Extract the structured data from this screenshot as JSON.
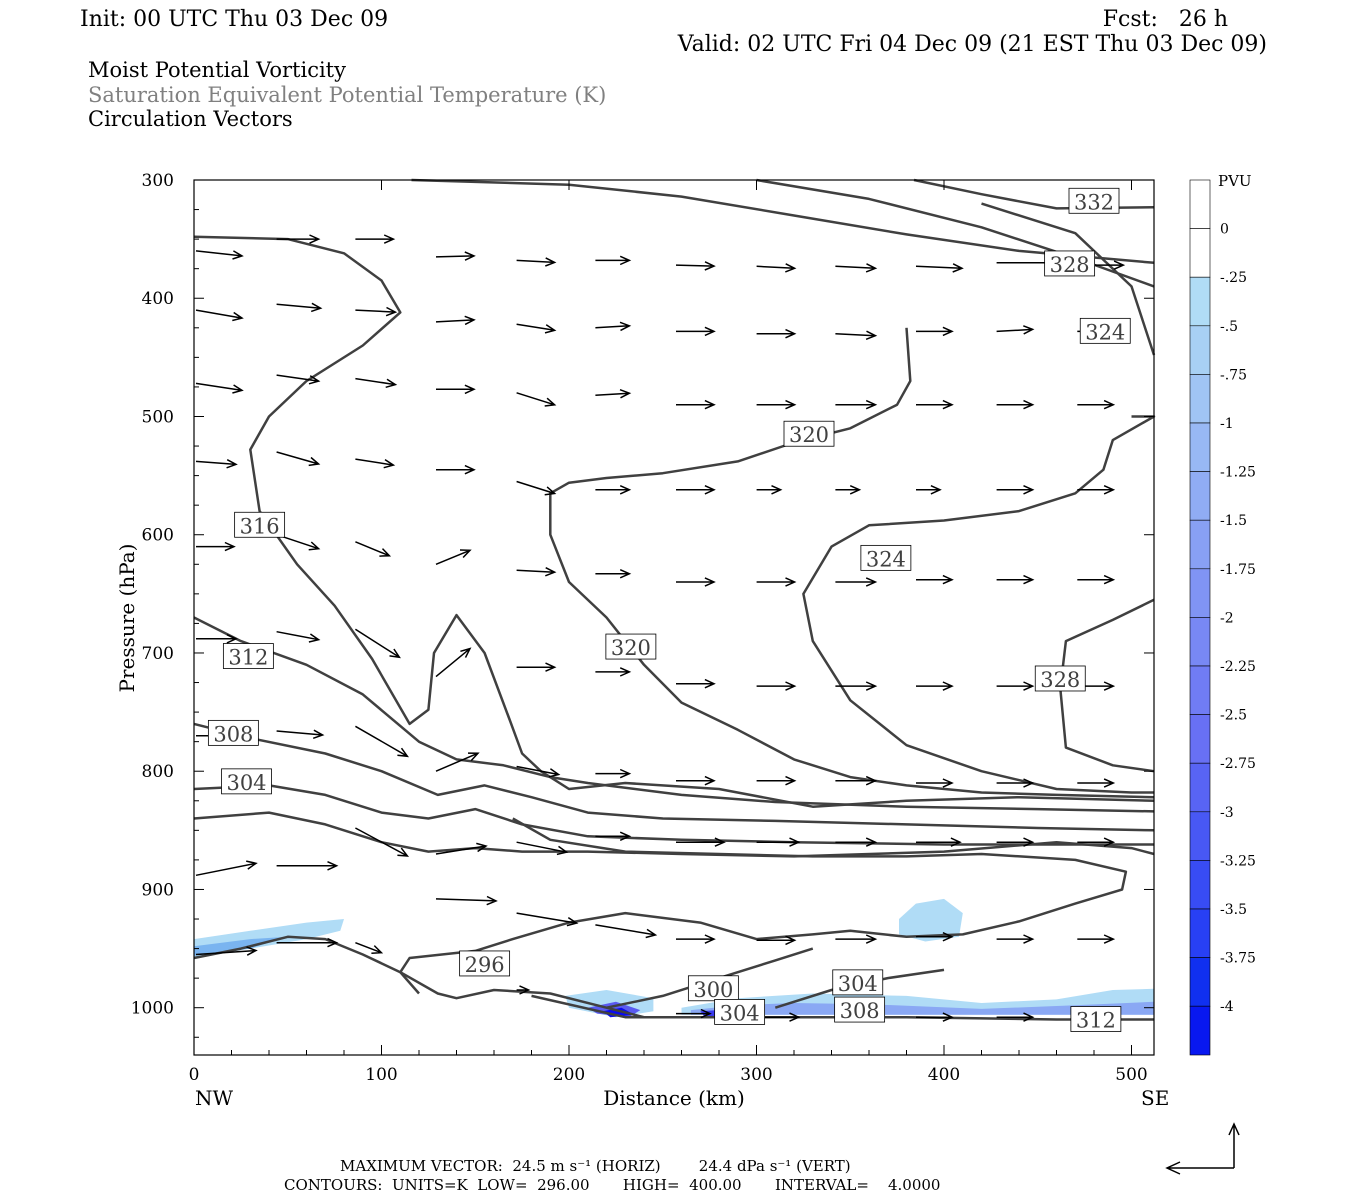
{
  "header": {
    "init": "Init: 00 UTC Thu 03 Dec 09",
    "fcst": "Fcst:   26 h",
    "valid": "Valid: 02 UTC Fri 04 Dec 09 (21 EST Thu 03 Dec 09)",
    "field1": "Moist Potential Vorticity",
    "field2": "Saturation Equivalent Potential Temperature (K)",
    "field3": "Circulation Vectors"
  },
  "footer": {
    "max_vector_line": "MAXIMUM VECTOR:  24.5 m s⁻¹ (HORIZ)        24.4 dPa s⁻¹ (VERT)",
    "contours_line": "CONTOURS:  UNITS=K  LOW=  296.00       HIGH=  400.00       INTERVAL=    4.0000"
  },
  "colors": {
    "contour": "#404040",
    "frame": "#000000",
    "shade_light": "#b0dcf6",
    "shade_dark": "#0a0af0"
  },
  "chart_data": {
    "type": "contour",
    "xlabel": "Distance (km)",
    "ylabel": "Pressure (hPa)",
    "xlim": [
      0,
      512
    ],
    "ylim": [
      300,
      1040
    ],
    "x_reversed": false,
    "y_reversed": true,
    "x_ticks": [
      0,
      100,
      200,
      300,
      400,
      500
    ],
    "y_ticks": [
      300,
      400,
      500,
      600,
      700,
      800,
      900,
      1000
    ],
    "x_end_labels": [
      "NW",
      "SE"
    ],
    "colorbar": {
      "title": "PVU",
      "levels": [
        0,
        -0.25,
        -0.5,
        -0.75,
        -1,
        -1.25,
        -1.5,
        -1.75,
        -2,
        -2.25,
        -2.5,
        -2.75,
        -3,
        -3.25,
        -3.5,
        -3.75,
        -4
      ],
      "labels": [
        "0",
        "-.25",
        "-.5",
        "-.75",
        "-1",
        "-1.25",
        "-1.5",
        "-1.75",
        "-2",
        "-2.25",
        "-2.5",
        "-2.75",
        "-3",
        "-3.25",
        "-3.5",
        "-3.75",
        "-4"
      ]
    },
    "contour_labels": [
      {
        "text": "332",
        "x": 480,
        "p": 318
      },
      {
        "text": "328",
        "x": 467,
        "p": 371
      },
      {
        "text": "324",
        "x": 486,
        "p": 428
      },
      {
        "text": "320",
        "x": 328,
        "p": 515
      },
      {
        "text": "316",
        "x": 35,
        "p": 592
      },
      {
        "text": "324",
        "x": 369,
        "p": 620
      },
      {
        "text": "320",
        "x": 233,
        "p": 695
      },
      {
        "text": "312",
        "x": 29,
        "p": 703
      },
      {
        "text": "328",
        "x": 462,
        "p": 722
      },
      {
        "text": "308",
        "x": 21,
        "p": 768
      },
      {
        "text": "304",
        "x": 28,
        "p": 809
      },
      {
        "text": "296",
        "x": 155,
        "p": 963
      },
      {
        "text": "300",
        "x": 277,
        "p": 984
      },
      {
        "text": "304",
        "x": 354,
        "p": 979
      },
      {
        "text": "304",
        "x": 291,
        "p": 1004
      },
      {
        "text": "308",
        "x": 355,
        "p": 1002
      },
      {
        "text": "312",
        "x": 481,
        "p": 1010
      }
    ]
  }
}
